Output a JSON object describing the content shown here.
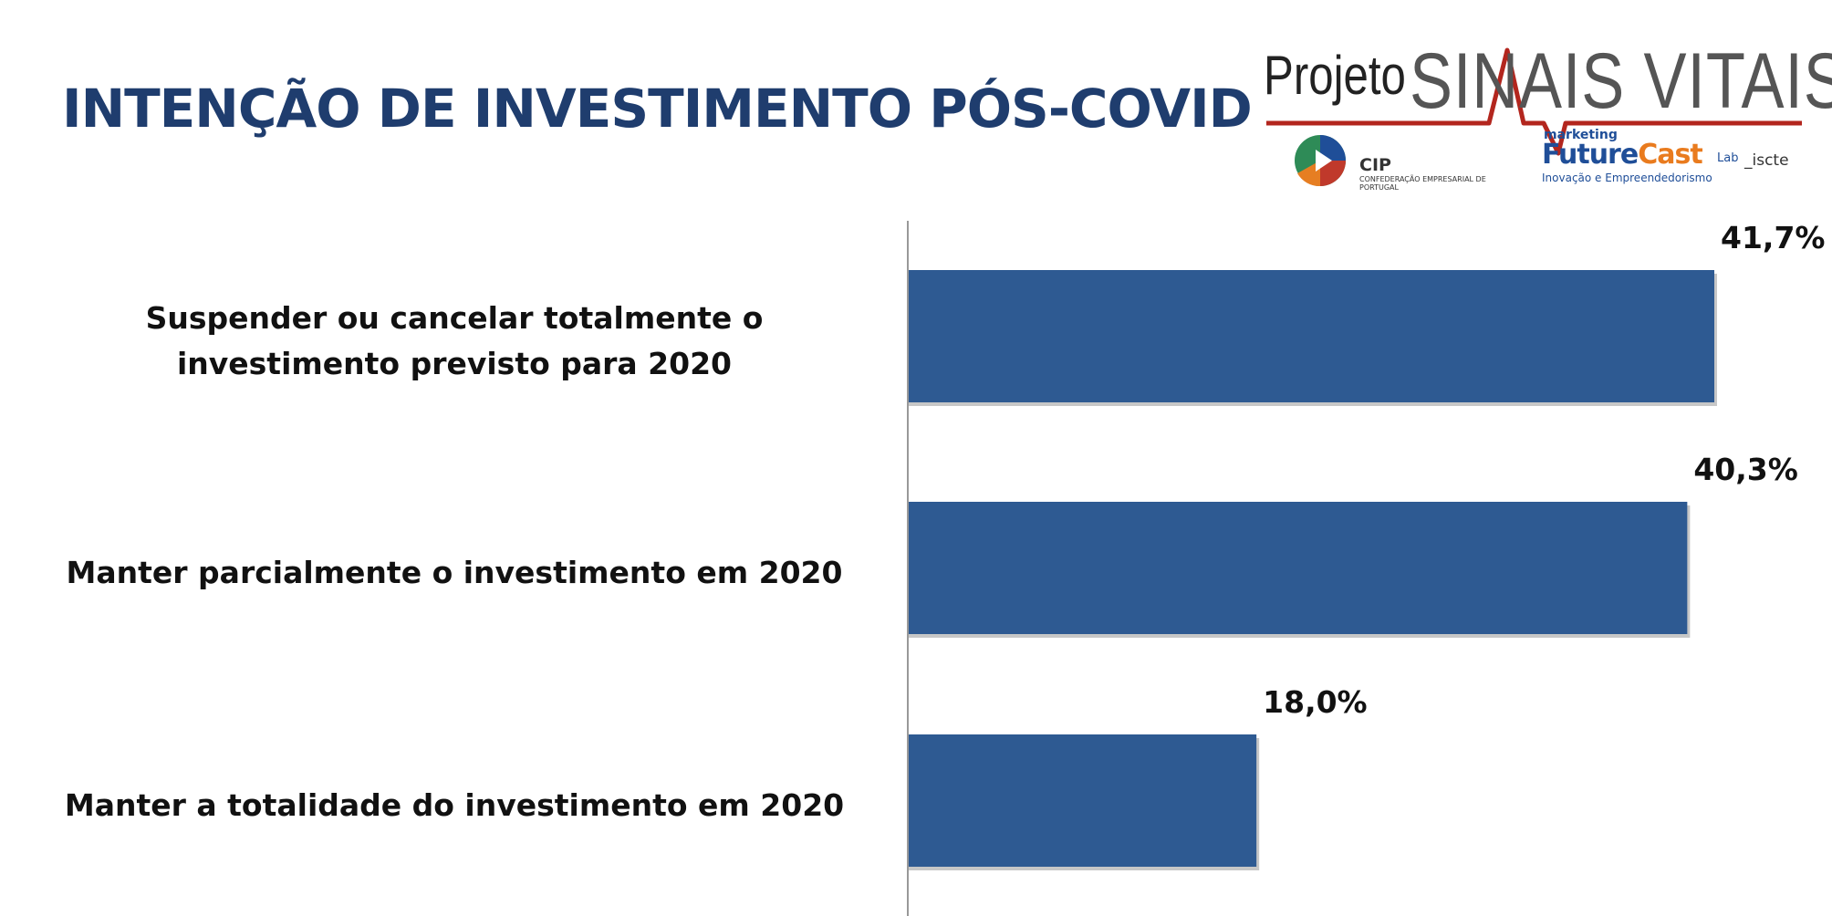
{
  "title": "INTENÇÃO DE INVESTIMENTO PÓS-COVID",
  "logo": {
    "projeto": "Projeto",
    "sinais_vitais": "SINAIS VITAIS",
    "cip": "CIP",
    "cip_sub": "CONFEDERAÇÃO EMPRESARIAL DE PORTUGAL",
    "marketing": "marketing",
    "future": "Future",
    "cast": "Cast",
    "lab": "Lab",
    "iscte": "_iscte",
    "inovacao": "Inovação e Empreendedorismo"
  },
  "colors": {
    "bar": "#2e5a92",
    "title": "#1f3d6e",
    "logo_red": "#b3261e"
  },
  "chart_data": {
    "type": "bar",
    "orientation": "horizontal",
    "categories": [
      "Suspender ou cancelar totalmente o investimento previsto para 2020",
      "Manter parcialmente  o investimento em 2020",
      "Manter a totalidade do investimento  em 2020"
    ],
    "values": [
      41.7,
      40.3,
      18.0
    ],
    "value_labels": [
      "41,7%",
      "40,3%",
      "18,0%"
    ],
    "xlim": [
      0,
      50
    ],
    "grid": false,
    "legend": "none"
  }
}
